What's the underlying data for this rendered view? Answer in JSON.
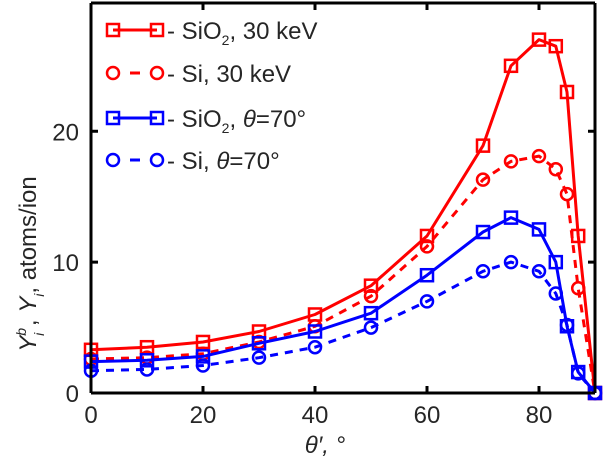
{
  "chart_data": {
    "type": "line",
    "title": "",
    "xlabel": "θ′, °",
    "ylabel": {
      "text": "Y^b_i , Y_i, atoms/ion",
      "parts": {
        "y1": "Y",
        "sup": "b",
        "sub1": "i",
        "sep": " , ",
        "y2": "Y",
        "sub2": "i",
        "rest": ", atoms/ion"
      }
    },
    "xlim": [
      0,
      90
    ],
    "ylim": [
      0,
      29.8
    ],
    "xticks": [
      0,
      20,
      40,
      60,
      80
    ],
    "xtick_labels": [
      "0",
      "20",
      "40",
      "60",
      "80"
    ],
    "yticks": [
      0,
      10,
      20
    ],
    "ytick_labels": [
      "0",
      "10",
      "20"
    ],
    "grid": false,
    "legend_position": "top-left",
    "series": [
      {
        "name": "SiO2, 30 keV",
        "legend": {
          "prefix": " - SiO",
          "sub": "2",
          "suffix": ", 30 keV",
          "theta": ""
        },
        "color": "#ff0000",
        "marker": "square",
        "linestyle": "solid",
        "x": [
          0,
          10,
          20,
          30,
          40,
          50,
          60,
          70,
          75,
          80,
          83,
          85,
          87,
          90
        ],
        "y": [
          3.3,
          3.5,
          3.9,
          4.7,
          6.0,
          8.2,
          12.0,
          18.9,
          25.0,
          27.0,
          26.5,
          23.0,
          12.0,
          0.0
        ]
      },
      {
        "name": "Si, 30 keV",
        "legend": {
          "prefix": " - Si, 30 keV",
          "sub": "",
          "suffix": "",
          "theta": ""
        },
        "color": "#ff0000",
        "marker": "circle",
        "linestyle": "dashed",
        "x": [
          0,
          10,
          20,
          30,
          40,
          50,
          60,
          70,
          75,
          80,
          83,
          85,
          87,
          90
        ],
        "y": [
          2.6,
          2.7,
          3.0,
          3.9,
          5.1,
          7.4,
          11.2,
          16.3,
          17.7,
          18.1,
          17.1,
          15.2,
          8.0,
          0.0
        ]
      },
      {
        "name": "SiO2, θ=70°",
        "legend": {
          "prefix": " - SiO",
          "sub": "2",
          "suffix": ", ",
          "theta": "θ=70°"
        },
        "color": "#0000ff",
        "marker": "square",
        "linestyle": "solid",
        "x": [
          0,
          10,
          20,
          30,
          40,
          50,
          60,
          70,
          75,
          80,
          83,
          85,
          87,
          90
        ],
        "y": [
          2.4,
          2.5,
          2.8,
          3.8,
          4.7,
          6.1,
          9.0,
          12.3,
          13.4,
          12.5,
          10.0,
          5.1,
          1.6,
          0.0
        ]
      },
      {
        "name": "Si, θ=70°",
        "legend": {
          "prefix": " - Si, ",
          "sub": "",
          "suffix": "",
          "theta": "θ=70°"
        },
        "color": "#0000ff",
        "marker": "circle",
        "linestyle": "dashed",
        "x": [
          0,
          10,
          20,
          30,
          40,
          50,
          60,
          70,
          75,
          80,
          83,
          85,
          87,
          90
        ],
        "y": [
          1.7,
          1.8,
          2.1,
          2.7,
          3.5,
          5.0,
          7.0,
          9.3,
          10.0,
          9.3,
          7.6,
          5.2,
          1.5,
          0.0
        ]
      }
    ]
  }
}
